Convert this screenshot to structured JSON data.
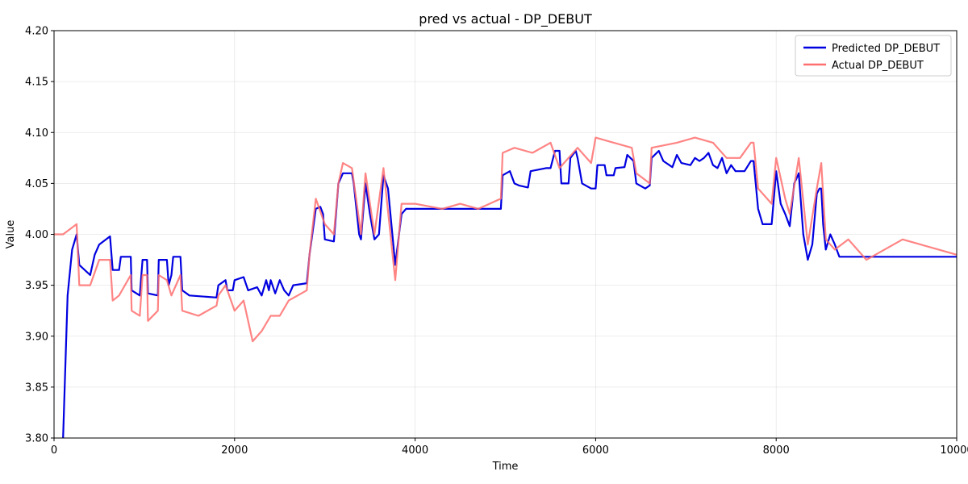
{
  "chart_data": {
    "type": "line",
    "title": "pred vs actual - DP_DEBUT",
    "xlabel": "Time",
    "ylabel": "Value",
    "xlim": [
      0,
      10000
    ],
    "ylim": [
      3.8,
      4.2
    ],
    "xticks": [
      0,
      2000,
      4000,
      6000,
      8000,
      10000
    ],
    "yticks": [
      3.8,
      3.85,
      3.9,
      3.95,
      4.0,
      4.05,
      4.1,
      4.15,
      4.2
    ],
    "xtick_labels": [
      "0",
      "2000",
      "4000",
      "6000",
      "8000",
      "10000"
    ],
    "ytick_labels": [
      "3.80",
      "3.85",
      "3.90",
      "3.95",
      "4.00",
      "4.05",
      "4.10",
      "4.15",
      "4.20"
    ],
    "grid": true,
    "legend_position": "top-right",
    "series": [
      {
        "name": "Predicted DP_DEBUT",
        "color": "#0000e0",
        "points": [
          [
            100,
            3.8
          ],
          [
            150,
            3.94
          ],
          [
            200,
            3.985
          ],
          [
            250,
            4.0
          ],
          [
            280,
            3.97
          ],
          [
            400,
            3.96
          ],
          [
            450,
            3.98
          ],
          [
            500,
            3.99
          ],
          [
            620,
            3.998
          ],
          [
            650,
            3.965
          ],
          [
            720,
            3.965
          ],
          [
            740,
            3.978
          ],
          [
            850,
            3.978
          ],
          [
            860,
            3.945
          ],
          [
            950,
            3.94
          ],
          [
            980,
            3.975
          ],
          [
            1030,
            3.975
          ],
          [
            1040,
            3.942
          ],
          [
            1150,
            3.94
          ],
          [
            1160,
            3.975
          ],
          [
            1250,
            3.975
          ],
          [
            1270,
            3.95
          ],
          [
            1300,
            3.96
          ],
          [
            1320,
            3.978
          ],
          [
            1400,
            3.978
          ],
          [
            1420,
            3.945
          ],
          [
            1500,
            3.94
          ],
          [
            1800,
            3.938
          ],
          [
            1820,
            3.95
          ],
          [
            1900,
            3.955
          ],
          [
            1920,
            3.945
          ],
          [
            1980,
            3.945
          ],
          [
            2000,
            3.955
          ],
          [
            2100,
            3.958
          ],
          [
            2150,
            3.945
          ],
          [
            2250,
            3.948
          ],
          [
            2300,
            3.94
          ],
          [
            2350,
            3.955
          ],
          [
            2380,
            3.945
          ],
          [
            2400,
            3.955
          ],
          [
            2450,
            3.942
          ],
          [
            2500,
            3.955
          ],
          [
            2550,
            3.945
          ],
          [
            2600,
            3.94
          ],
          [
            2650,
            3.95
          ],
          [
            2800,
            3.952
          ],
          [
            2830,
            3.98
          ],
          [
            2900,
            4.025
          ],
          [
            2950,
            4.027
          ],
          [
            2980,
            4.02
          ],
          [
            3000,
            3.995
          ],
          [
            3100,
            3.993
          ],
          [
            3150,
            4.05
          ],
          [
            3200,
            4.06
          ],
          [
            3300,
            4.06
          ],
          [
            3320,
            4.05
          ],
          [
            3380,
            4.0
          ],
          [
            3400,
            3.995
          ],
          [
            3450,
            4.05
          ],
          [
            3500,
            4.02
          ],
          [
            3550,
            3.995
          ],
          [
            3600,
            4.0
          ],
          [
            3650,
            4.058
          ],
          [
            3700,
            4.045
          ],
          [
            3780,
            3.97
          ],
          [
            3850,
            4.02
          ],
          [
            3900,
            4.025
          ],
          [
            4500,
            4.025
          ],
          [
            4950,
            4.025
          ],
          [
            4970,
            4.058
          ],
          [
            5050,
            4.062
          ],
          [
            5100,
            4.05
          ],
          [
            5150,
            4.048
          ],
          [
            5250,
            4.046
          ],
          [
            5280,
            4.062
          ],
          [
            5450,
            4.065
          ],
          [
            5470,
            4.065
          ],
          [
            5500,
            4.065
          ],
          [
            5550,
            4.082
          ],
          [
            5600,
            4.082
          ],
          [
            5620,
            4.05
          ],
          [
            5700,
            4.05
          ],
          [
            5720,
            4.075
          ],
          [
            5780,
            4.082
          ],
          [
            5800,
            4.075
          ],
          [
            5850,
            4.05
          ],
          [
            5950,
            4.045
          ],
          [
            6000,
            4.045
          ],
          [
            6020,
            4.068
          ],
          [
            6100,
            4.068
          ],
          [
            6120,
            4.058
          ],
          [
            6200,
            4.058
          ],
          [
            6220,
            4.065
          ],
          [
            6320,
            4.066
          ],
          [
            6350,
            4.078
          ],
          [
            6420,
            4.072
          ],
          [
            6450,
            4.05
          ],
          [
            6550,
            4.045
          ],
          [
            6600,
            4.048
          ],
          [
            6620,
            4.075
          ],
          [
            6700,
            4.082
          ],
          [
            6750,
            4.072
          ],
          [
            6850,
            4.066
          ],
          [
            6900,
            4.078
          ],
          [
            6950,
            4.07
          ],
          [
            7050,
            4.068
          ],
          [
            7100,
            4.075
          ],
          [
            7150,
            4.072
          ],
          [
            7200,
            4.075
          ],
          [
            7250,
            4.08
          ],
          [
            7300,
            4.068
          ],
          [
            7350,
            4.065
          ],
          [
            7400,
            4.075
          ],
          [
            7450,
            4.06
          ],
          [
            7500,
            4.068
          ],
          [
            7550,
            4.062
          ],
          [
            7650,
            4.062
          ],
          [
            7720,
            4.072
          ],
          [
            7750,
            4.072
          ],
          [
            7800,
            4.025
          ],
          [
            7850,
            4.01
          ],
          [
            7950,
            4.01
          ],
          [
            8000,
            4.062
          ],
          [
            8050,
            4.03
          ],
          [
            8100,
            4.02
          ],
          [
            8150,
            4.008
          ],
          [
            8200,
            4.05
          ],
          [
            8250,
            4.06
          ],
          [
            8300,
            4.0
          ],
          [
            8350,
            3.975
          ],
          [
            8400,
            3.99
          ],
          [
            8450,
            4.04
          ],
          [
            8480,
            4.045
          ],
          [
            8500,
            4.045
          ],
          [
            8520,
            4.01
          ],
          [
            8550,
            3.985
          ],
          [
            8600,
            4.0
          ],
          [
            8650,
            3.99
          ],
          [
            8700,
            3.978
          ],
          [
            10000,
            3.978
          ]
        ]
      },
      {
        "name": "Actual DP_DEBUT",
        "color": "#ff6f6f",
        "points": [
          [
            0,
            4.0
          ],
          [
            100,
            4.0
          ],
          [
            250,
            4.01
          ],
          [
            280,
            3.95
          ],
          [
            400,
            3.95
          ],
          [
            500,
            3.975
          ],
          [
            620,
            3.975
          ],
          [
            650,
            3.935
          ],
          [
            720,
            3.94
          ],
          [
            850,
            3.96
          ],
          [
            860,
            3.925
          ],
          [
            950,
            3.92
          ],
          [
            980,
            3.96
          ],
          [
            1030,
            3.96
          ],
          [
            1040,
            3.915
          ],
          [
            1150,
            3.925
          ],
          [
            1160,
            3.96
          ],
          [
            1250,
            3.955
          ],
          [
            1300,
            3.94
          ],
          [
            1400,
            3.96
          ],
          [
            1420,
            3.925
          ],
          [
            1600,
            3.92
          ],
          [
            1800,
            3.93
          ],
          [
            1820,
            3.94
          ],
          [
            1900,
            3.95
          ],
          [
            2000,
            3.925
          ],
          [
            2100,
            3.935
          ],
          [
            2200,
            3.895
          ],
          [
            2300,
            3.905
          ],
          [
            2400,
            3.92
          ],
          [
            2500,
            3.92
          ],
          [
            2600,
            3.935
          ],
          [
            2800,
            3.945
          ],
          [
            2830,
            3.98
          ],
          [
            2900,
            4.035
          ],
          [
            3000,
            4.01
          ],
          [
            3100,
            4.0
          ],
          [
            3150,
            4.05
          ],
          [
            3200,
            4.07
          ],
          [
            3300,
            4.065
          ],
          [
            3400,
            4.0
          ],
          [
            3450,
            4.06
          ],
          [
            3550,
            4.0
          ],
          [
            3650,
            4.065
          ],
          [
            3780,
            3.955
          ],
          [
            3850,
            4.03
          ],
          [
            4000,
            4.03
          ],
          [
            4300,
            4.025
          ],
          [
            4500,
            4.03
          ],
          [
            4700,
            4.025
          ],
          [
            4950,
            4.035
          ],
          [
            4970,
            4.08
          ],
          [
            5100,
            4.085
          ],
          [
            5300,
            4.08
          ],
          [
            5500,
            4.09
          ],
          [
            5600,
            4.065
          ],
          [
            5800,
            4.085
          ],
          [
            5950,
            4.07
          ],
          [
            6000,
            4.095
          ],
          [
            6200,
            4.09
          ],
          [
            6400,
            4.085
          ],
          [
            6450,
            4.06
          ],
          [
            6600,
            4.05
          ],
          [
            6620,
            4.085
          ],
          [
            6900,
            4.09
          ],
          [
            7100,
            4.095
          ],
          [
            7300,
            4.09
          ],
          [
            7450,
            4.075
          ],
          [
            7600,
            4.075
          ],
          [
            7720,
            4.09
          ],
          [
            7750,
            4.09
          ],
          [
            7800,
            4.045
          ],
          [
            7950,
            4.03
          ],
          [
            8000,
            4.075
          ],
          [
            8100,
            4.035
          ],
          [
            8150,
            4.02
          ],
          [
            8250,
            4.075
          ],
          [
            8350,
            3.99
          ],
          [
            8450,
            4.045
          ],
          [
            8500,
            4.07
          ],
          [
            8550,
            3.995
          ],
          [
            8650,
            3.985
          ],
          [
            8800,
            3.995
          ],
          [
            9000,
            3.975
          ],
          [
            9200,
            3.985
          ],
          [
            9400,
            3.995
          ],
          [
            9600,
            3.99
          ],
          [
            9800,
            3.985
          ],
          [
            10000,
            3.98
          ]
        ]
      }
    ]
  }
}
